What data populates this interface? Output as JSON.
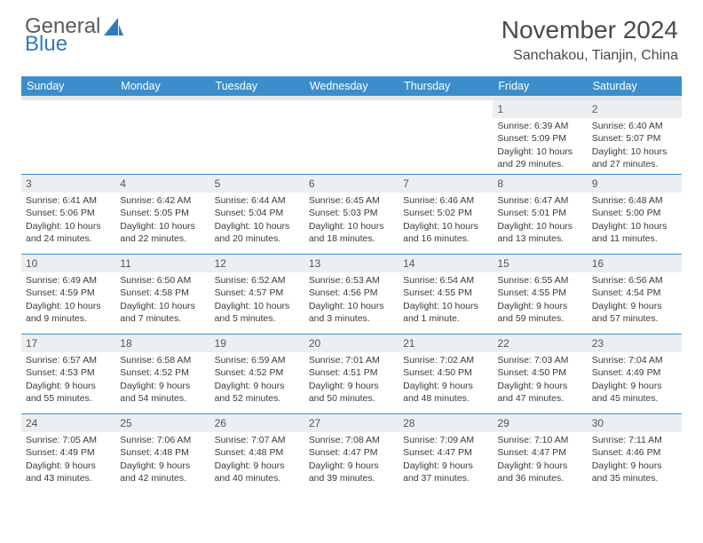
{
  "logo": {
    "line1": "General",
    "line2": "Blue"
  },
  "title": "November 2024",
  "subtitle": "Sanchakou, Tianjin, China",
  "colors": {
    "header_bg": "#3c8ecb",
    "header_text": "#ffffff",
    "daynum_bg": "#eceff1",
    "rule": "#3c8ecb",
    "logo_gray": "#5a5a5a",
    "logo_blue": "#2f7bbf"
  },
  "day_headers": [
    "Sunday",
    "Monday",
    "Tuesday",
    "Wednesday",
    "Thursday",
    "Friday",
    "Saturday"
  ],
  "weeks": [
    [
      null,
      null,
      null,
      null,
      null,
      {
        "n": "1",
        "sr": "Sunrise: 6:39 AM",
        "ss": "Sunset: 5:09 PM",
        "dl": "Daylight: 10 hours and 29 minutes."
      },
      {
        "n": "2",
        "sr": "Sunrise: 6:40 AM",
        "ss": "Sunset: 5:07 PM",
        "dl": "Daylight: 10 hours and 27 minutes."
      }
    ],
    [
      {
        "n": "3",
        "sr": "Sunrise: 6:41 AM",
        "ss": "Sunset: 5:06 PM",
        "dl": "Daylight: 10 hours and 24 minutes."
      },
      {
        "n": "4",
        "sr": "Sunrise: 6:42 AM",
        "ss": "Sunset: 5:05 PM",
        "dl": "Daylight: 10 hours and 22 minutes."
      },
      {
        "n": "5",
        "sr": "Sunrise: 6:44 AM",
        "ss": "Sunset: 5:04 PM",
        "dl": "Daylight: 10 hours and 20 minutes."
      },
      {
        "n": "6",
        "sr": "Sunrise: 6:45 AM",
        "ss": "Sunset: 5:03 PM",
        "dl": "Daylight: 10 hours and 18 minutes."
      },
      {
        "n": "7",
        "sr": "Sunrise: 6:46 AM",
        "ss": "Sunset: 5:02 PM",
        "dl": "Daylight: 10 hours and 16 minutes."
      },
      {
        "n": "8",
        "sr": "Sunrise: 6:47 AM",
        "ss": "Sunset: 5:01 PM",
        "dl": "Daylight: 10 hours and 13 minutes."
      },
      {
        "n": "9",
        "sr": "Sunrise: 6:48 AM",
        "ss": "Sunset: 5:00 PM",
        "dl": "Daylight: 10 hours and 11 minutes."
      }
    ],
    [
      {
        "n": "10",
        "sr": "Sunrise: 6:49 AM",
        "ss": "Sunset: 4:59 PM",
        "dl": "Daylight: 10 hours and 9 minutes."
      },
      {
        "n": "11",
        "sr": "Sunrise: 6:50 AM",
        "ss": "Sunset: 4:58 PM",
        "dl": "Daylight: 10 hours and 7 minutes."
      },
      {
        "n": "12",
        "sr": "Sunrise: 6:52 AM",
        "ss": "Sunset: 4:57 PM",
        "dl": "Daylight: 10 hours and 5 minutes."
      },
      {
        "n": "13",
        "sr": "Sunrise: 6:53 AM",
        "ss": "Sunset: 4:56 PM",
        "dl": "Daylight: 10 hours and 3 minutes."
      },
      {
        "n": "14",
        "sr": "Sunrise: 6:54 AM",
        "ss": "Sunset: 4:55 PM",
        "dl": "Daylight: 10 hours and 1 minute."
      },
      {
        "n": "15",
        "sr": "Sunrise: 6:55 AM",
        "ss": "Sunset: 4:55 PM",
        "dl": "Daylight: 9 hours and 59 minutes."
      },
      {
        "n": "16",
        "sr": "Sunrise: 6:56 AM",
        "ss": "Sunset: 4:54 PM",
        "dl": "Daylight: 9 hours and 57 minutes."
      }
    ],
    [
      {
        "n": "17",
        "sr": "Sunrise: 6:57 AM",
        "ss": "Sunset: 4:53 PM",
        "dl": "Daylight: 9 hours and 55 minutes."
      },
      {
        "n": "18",
        "sr": "Sunrise: 6:58 AM",
        "ss": "Sunset: 4:52 PM",
        "dl": "Daylight: 9 hours and 54 minutes."
      },
      {
        "n": "19",
        "sr": "Sunrise: 6:59 AM",
        "ss": "Sunset: 4:52 PM",
        "dl": "Daylight: 9 hours and 52 minutes."
      },
      {
        "n": "20",
        "sr": "Sunrise: 7:01 AM",
        "ss": "Sunset: 4:51 PM",
        "dl": "Daylight: 9 hours and 50 minutes."
      },
      {
        "n": "21",
        "sr": "Sunrise: 7:02 AM",
        "ss": "Sunset: 4:50 PM",
        "dl": "Daylight: 9 hours and 48 minutes."
      },
      {
        "n": "22",
        "sr": "Sunrise: 7:03 AM",
        "ss": "Sunset: 4:50 PM",
        "dl": "Daylight: 9 hours and 47 minutes."
      },
      {
        "n": "23",
        "sr": "Sunrise: 7:04 AM",
        "ss": "Sunset: 4:49 PM",
        "dl": "Daylight: 9 hours and 45 minutes."
      }
    ],
    [
      {
        "n": "24",
        "sr": "Sunrise: 7:05 AM",
        "ss": "Sunset: 4:49 PM",
        "dl": "Daylight: 9 hours and 43 minutes."
      },
      {
        "n": "25",
        "sr": "Sunrise: 7:06 AM",
        "ss": "Sunset: 4:48 PM",
        "dl": "Daylight: 9 hours and 42 minutes."
      },
      {
        "n": "26",
        "sr": "Sunrise: 7:07 AM",
        "ss": "Sunset: 4:48 PM",
        "dl": "Daylight: 9 hours and 40 minutes."
      },
      {
        "n": "27",
        "sr": "Sunrise: 7:08 AM",
        "ss": "Sunset: 4:47 PM",
        "dl": "Daylight: 9 hours and 39 minutes."
      },
      {
        "n": "28",
        "sr": "Sunrise: 7:09 AM",
        "ss": "Sunset: 4:47 PM",
        "dl": "Daylight: 9 hours and 37 minutes."
      },
      {
        "n": "29",
        "sr": "Sunrise: 7:10 AM",
        "ss": "Sunset: 4:47 PM",
        "dl": "Daylight: 9 hours and 36 minutes."
      },
      {
        "n": "30",
        "sr": "Sunrise: 7:11 AM",
        "ss": "Sunset: 4:46 PM",
        "dl": "Daylight: 9 hours and 35 minutes."
      }
    ]
  ]
}
